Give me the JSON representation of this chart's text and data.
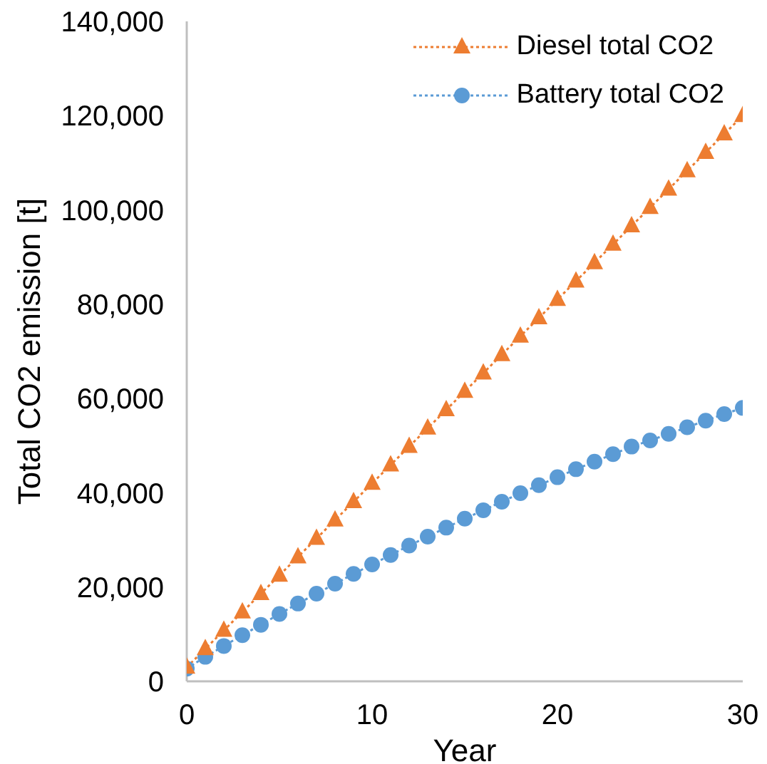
{
  "chart_data": {
    "type": "line",
    "xlabel": "Year",
    "ylabel": "Total CO2 emission [t]",
    "x": [
      0,
      1,
      2,
      3,
      4,
      5,
      6,
      7,
      8,
      9,
      10,
      11,
      12,
      13,
      14,
      15,
      16,
      17,
      18,
      19,
      20,
      21,
      22,
      23,
      24,
      25,
      26,
      27,
      28,
      29,
      30
    ],
    "series": [
      {
        "name": "Diesel total CO2",
        "color": "#ed7d31",
        "marker": "triangle",
        "values": [
          3000,
          6900,
          10800,
          14700,
          18600,
          22500,
          26400,
          30300,
          34200,
          38100,
          42000,
          45900,
          49800,
          53700,
          57600,
          61500,
          65400,
          69300,
          73200,
          77100,
          81000,
          84900,
          88800,
          92700,
          96600,
          100500,
          104400,
          108300,
          112200,
          116100,
          120000
        ]
      },
      {
        "name": "Battery total CO2",
        "color": "#5b9bd5",
        "marker": "circle",
        "values": [
          2700,
          5200,
          7500,
          9800,
          12000,
          14300,
          16500,
          18600,
          20700,
          22800,
          24800,
          26800,
          28800,
          30700,
          32600,
          34500,
          36300,
          38100,
          39900,
          41600,
          43300,
          45000,
          46600,
          48200,
          49800,
          51100,
          52500,
          53900,
          55300,
          56700,
          58000
        ]
      }
    ],
    "xlim": [
      0,
      30
    ],
    "xticks": [
      0,
      10,
      20,
      30
    ],
    "ylim": [
      0,
      140000
    ],
    "yticks": [
      0,
      {
        "value": 20000,
        "label": "20,000"
      },
      {
        "value": 40000,
        "label": "40,000"
      },
      {
        "value": 60000,
        "label": "60,000"
      },
      {
        "value": 80000,
        "label": "80,000"
      },
      {
        "value": 100000,
        "label": "100,000"
      },
      {
        "value": 120000,
        "label": "120,000"
      },
      {
        "value": 140000,
        "label": "140,000"
      }
    ],
    "grid": false,
    "legend": "top right",
    "line_style": "dotted"
  }
}
